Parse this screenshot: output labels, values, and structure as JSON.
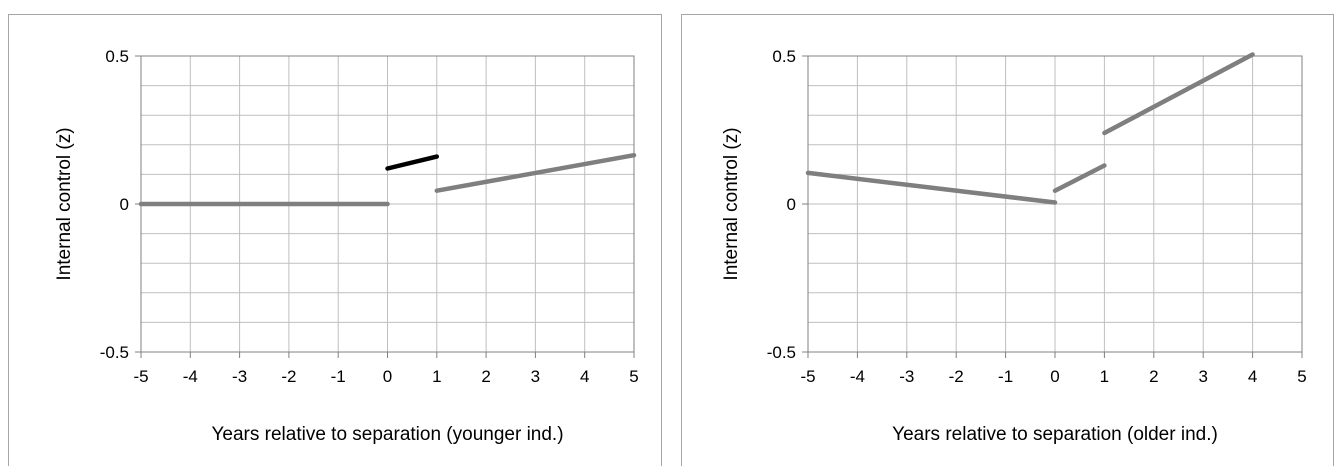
{
  "chart_data": [
    {
      "type": "line",
      "title": "",
      "xlabel": "Years relative to separation (younger ind.)",
      "ylabel": "Internal control (z)",
      "xlim": [
        -5,
        5
      ],
      "ylim": [
        -0.5,
        0.5
      ],
      "xticks": [
        "-5",
        "-4",
        "-3",
        "-2",
        "-1",
        "0",
        "1",
        "2",
        "3",
        "4",
        "5"
      ],
      "yticks": [
        "0.5",
        "0",
        "-0.5"
      ],
      "grid": true,
      "legend": "none",
      "series": [
        {
          "color": "#7f7f7f",
          "points": [
            [
              -5,
              0.0
            ],
            [
              0,
              0.0
            ]
          ]
        },
        {
          "color": "#000000",
          "points": [
            [
              0,
              0.12
            ],
            [
              1,
              0.16
            ]
          ]
        },
        {
          "color": "#7f7f7f",
          "points": [
            [
              1,
              0.045
            ],
            [
              5,
              0.165
            ]
          ]
        }
      ]
    },
    {
      "type": "line",
      "title": "",
      "xlabel": "Years relative to separation (older ind.)",
      "ylabel": "Internal control (z)",
      "xlim": [
        -5,
        5
      ],
      "ylim": [
        -0.5,
        0.5
      ],
      "xticks": [
        "-5",
        "-4",
        "-3",
        "-2",
        "-1",
        "0",
        "1",
        "2",
        "3",
        "4",
        "5"
      ],
      "yticks": [
        "0.5",
        "0",
        "-0.5"
      ],
      "grid": true,
      "legend": "none",
      "series": [
        {
          "color": "#7f7f7f",
          "points": [
            [
              -5,
              0.105
            ],
            [
              0,
              0.005
            ]
          ]
        },
        {
          "color": "#7f7f7f",
          "points": [
            [
              0,
              0.045
            ],
            [
              1,
              0.13
            ]
          ]
        },
        {
          "color": "#7f7f7f",
          "points": [
            [
              1,
              0.24
            ],
            [
              4,
              0.505
            ]
          ]
        }
      ]
    }
  ]
}
